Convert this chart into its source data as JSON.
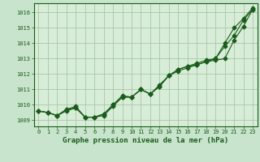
{
  "title": "Graphe pression niveau de la mer (hPa)",
  "bg_color": "#c8e4cc",
  "plot_bg_color": "#d8edd8",
  "grid_color": "#9fbf9f",
  "line_color": "#1a5c1a",
  "xlim": [
    -0.5,
    23.5
  ],
  "ylim": [
    1008.6,
    1016.6
  ],
  "xticks": [
    0,
    1,
    2,
    3,
    4,
    5,
    6,
    7,
    8,
    9,
    10,
    11,
    12,
    13,
    14,
    15,
    16,
    17,
    18,
    19,
    20,
    21,
    22,
    23
  ],
  "yticks": [
    1009,
    1010,
    1011,
    1012,
    1013,
    1014,
    1015,
    1016
  ],
  "series": [
    [
      1009.6,
      1009.5,
      1009.3,
      1009.6,
      1009.8,
      1009.2,
      1009.2,
      1009.3,
      1009.9,
      1010.5,
      1010.5,
      1011.0,
      1010.7,
      1011.2,
      1011.9,
      1012.2,
      1012.4,
      1012.6,
      1012.8,
      1012.9,
      1013.0,
      1014.2,
      1015.1,
      1016.2
    ],
    [
      1009.6,
      1009.5,
      1009.3,
      1009.7,
      1009.8,
      1009.2,
      1009.2,
      1009.4,
      1010.0,
      1010.5,
      1010.5,
      1011.0,
      1010.7,
      1011.2,
      1011.9,
      1012.3,
      1012.5,
      1012.6,
      1012.8,
      1013.0,
      1013.8,
      1014.5,
      1015.5,
      1016.2
    ],
    [
      1009.6,
      1009.5,
      1009.3,
      1009.7,
      1009.9,
      1009.2,
      1009.2,
      1009.4,
      1010.0,
      1010.6,
      1010.5,
      1011.0,
      1010.7,
      1011.3,
      1011.9,
      1012.3,
      1012.5,
      1012.7,
      1012.9,
      1013.0,
      1014.0,
      1015.0,
      1015.6,
      1016.3
    ]
  ],
  "marker": "D",
  "marker_size": 2.5,
  "line_width": 0.8,
  "title_fontsize": 6.5,
  "tick_fontsize": 5.0,
  "figsize": [
    3.2,
    2.0
  ],
  "dpi": 100
}
